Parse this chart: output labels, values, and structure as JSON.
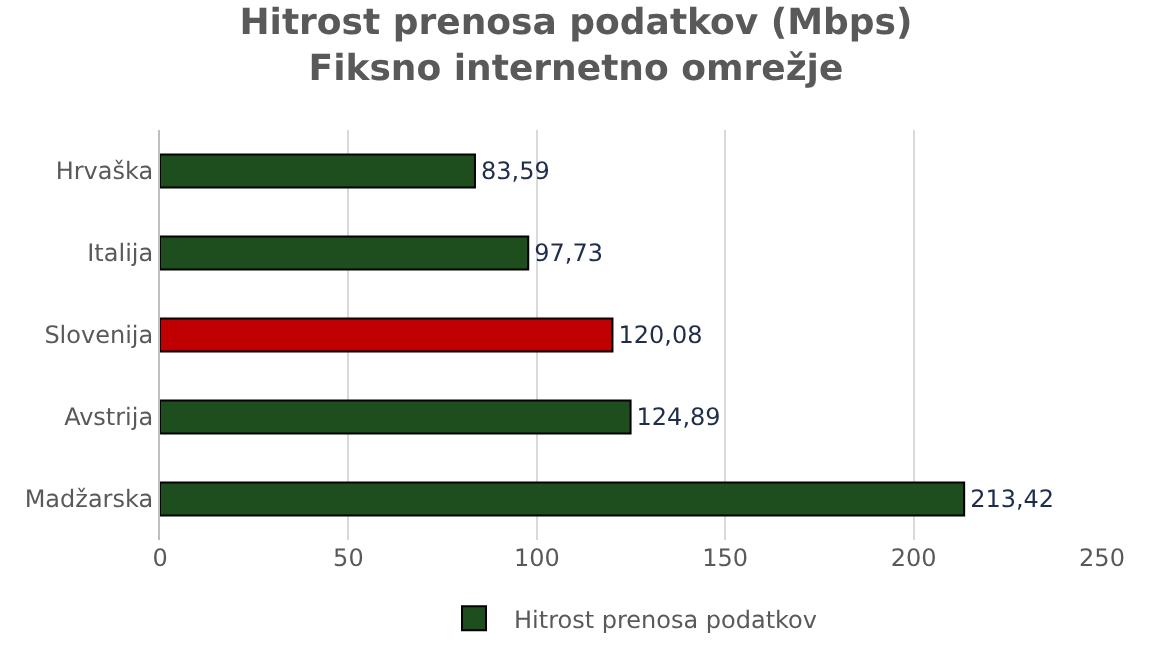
{
  "chart_data": {
    "type": "bar",
    "orientation": "horizontal",
    "title": "Hitrost prenosa podatkov (Mbps)\nFiksno internetno omrežje",
    "categories": [
      "Hrvaška",
      "Italija",
      "Slovenija",
      "Avstrija",
      "Madžarska"
    ],
    "series": [
      {
        "name": "Hitrost prenosa podatkov",
        "colors": [
          "#1e4d1e",
          "#1e4d1e",
          "#c00000",
          "#1e4d1e",
          "#1e4d1e"
        ],
        "values": [
          83.59,
          97.73,
          120.08,
          124.89,
          213.42
        ],
        "value_labels": [
          "83,59",
          "97,73",
          "120,08",
          "124,89",
          "213,42"
        ]
      }
    ],
    "xlim": [
      0,
      250
    ],
    "xticks": [
      0,
      50,
      100,
      150,
      200,
      250
    ],
    "grid": "x",
    "legend": "bottom"
  }
}
